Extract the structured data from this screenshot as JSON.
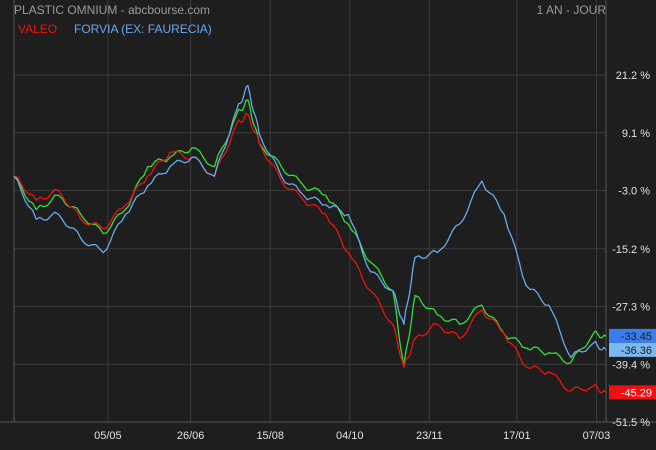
{
  "header": {
    "title": "PLASTIC OMNIUM - abcbourse.com",
    "period": "1 AN - JOUR"
  },
  "colors": {
    "background": "#1e1e1e",
    "grid": "#3a3a3a",
    "axis_text": "#e0e0e0",
    "muted_text": "#9a9a9a"
  },
  "chart_data": {
    "type": "line",
    "title": "PLASTIC OMNIUM",
    "y_unit": "%",
    "ylim": [
      -51.5,
      27.5
    ],
    "y_ticks": [
      21.2,
      9.1,
      -3.0,
      -15.2,
      -27.3,
      -39.4,
      -51.5
    ],
    "y_tick_labels": [
      "21.2 %",
      "9.1 %",
      "-3.0 %",
      "-15.2 %",
      "-27.3 %",
      "-39.4 %",
      "-51.5 %"
    ],
    "x_range": [
      "2023-03-07",
      "2024-03-13"
    ],
    "x_ticks": [
      "2023-05-05",
      "2023-06-26",
      "2023-08-15",
      "2023-10-04",
      "2023-11-23",
      "2024-01-17",
      "2024-03-07"
    ],
    "x_tick_labels": [
      "05/05",
      "26/06",
      "15/08",
      "04/10",
      "23/11",
      "17/01",
      "07/03"
    ],
    "grid": true,
    "legend": "top-left",
    "series": [
      {
        "name": "PLASTIC OMNIUM",
        "color": "#33dd33",
        "last_label": "-33.45",
        "label_bg": "#3b7ded",
        "points": [
          [
            "2023-03-07",
            0.0
          ],
          [
            "2023-03-21",
            -7.0
          ],
          [
            "2023-04-04",
            -4.0
          ],
          [
            "2023-04-18",
            -8.0
          ],
          [
            "2023-05-02",
            -12.0
          ],
          [
            "2023-05-16",
            -7.0
          ],
          [
            "2023-05-30",
            2.0
          ],
          [
            "2023-06-13",
            4.0
          ],
          [
            "2023-06-27",
            6.0
          ],
          [
            "2023-07-11",
            2.0
          ],
          [
            "2023-07-25",
            13.0
          ],
          [
            "2023-08-01",
            16.0
          ],
          [
            "2023-08-08",
            7.0
          ],
          [
            "2023-08-22",
            2.0
          ],
          [
            "2023-09-05",
            -2.0
          ],
          [
            "2023-09-19",
            -4.0
          ],
          [
            "2023-10-03",
            -10.0
          ],
          [
            "2023-10-17",
            -18.0
          ],
          [
            "2023-10-31",
            -24.0
          ],
          [
            "2023-11-07",
            -40.0
          ],
          [
            "2023-11-14",
            -25.0
          ],
          [
            "2023-11-28",
            -29.0
          ],
          [
            "2023-12-12",
            -31.0
          ],
          [
            "2023-12-26",
            -27.0
          ],
          [
            "2024-01-09",
            -33.0
          ],
          [
            "2024-01-23",
            -36.0
          ],
          [
            "2024-02-06",
            -37.0
          ],
          [
            "2024-02-20",
            -39.0
          ],
          [
            "2024-03-05",
            -33.0
          ],
          [
            "2024-03-13",
            -33.45
          ]
        ]
      },
      {
        "name": "VALEO",
        "color": "#ee1111",
        "last_label": "-45.29",
        "label_bg": "#ee1111",
        "points": [
          [
            "2023-03-07",
            0.0
          ],
          [
            "2023-03-21",
            -5.0
          ],
          [
            "2023-04-04",
            -3.0
          ],
          [
            "2023-04-18",
            -9.0
          ],
          [
            "2023-05-02",
            -11.0
          ],
          [
            "2023-05-16",
            -6.0
          ],
          [
            "2023-05-30",
            0.0
          ],
          [
            "2023-06-13",
            5.0
          ],
          [
            "2023-06-27",
            4.0
          ],
          [
            "2023-07-11",
            0.0
          ],
          [
            "2023-07-25",
            11.0
          ],
          [
            "2023-08-01",
            13.0
          ],
          [
            "2023-08-08",
            7.0
          ],
          [
            "2023-08-22",
            -1.0
          ],
          [
            "2023-09-05",
            -5.0
          ],
          [
            "2023-09-19",
            -8.0
          ],
          [
            "2023-10-03",
            -16.0
          ],
          [
            "2023-10-17",
            -24.0
          ],
          [
            "2023-10-31",
            -31.0
          ],
          [
            "2023-11-07",
            -40.0
          ],
          [
            "2023-11-14",
            -34.0
          ],
          [
            "2023-11-28",
            -31.0
          ],
          [
            "2023-12-12",
            -34.0
          ],
          [
            "2023-12-26",
            -28.0
          ],
          [
            "2024-01-09",
            -33.0
          ],
          [
            "2024-01-23",
            -40.0
          ],
          [
            "2024-02-06",
            -41.0
          ],
          [
            "2024-02-20",
            -45.0
          ],
          [
            "2024-03-05",
            -44.0
          ],
          [
            "2024-03-13",
            -45.29
          ]
        ]
      },
      {
        "name": "FORVIA (EX: FAURECIA)",
        "color": "#66aaee",
        "last_label": "-36.36",
        "label_bg": "#7db8f2",
        "points": [
          [
            "2023-03-07",
            0.0
          ],
          [
            "2023-03-21",
            -9.0
          ],
          [
            "2023-04-04",
            -8.0
          ],
          [
            "2023-04-18",
            -13.0
          ],
          [
            "2023-05-02",
            -16.0
          ],
          [
            "2023-05-16",
            -8.0
          ],
          [
            "2023-05-30",
            -2.0
          ],
          [
            "2023-06-13",
            2.0
          ],
          [
            "2023-06-27",
            4.0
          ],
          [
            "2023-07-11",
            0.0
          ],
          [
            "2023-07-25",
            14.0
          ],
          [
            "2023-08-01",
            19.0
          ],
          [
            "2023-08-08",
            9.0
          ],
          [
            "2023-08-22",
            0.0
          ],
          [
            "2023-09-05",
            -4.0
          ],
          [
            "2023-09-19",
            -6.0
          ],
          [
            "2023-10-03",
            -8.0
          ],
          [
            "2023-10-17",
            -20.0
          ],
          [
            "2023-10-31",
            -24.0
          ],
          [
            "2023-11-07",
            -31.0
          ],
          [
            "2023-11-14",
            -17.0
          ],
          [
            "2023-11-28",
            -16.0
          ],
          [
            "2023-12-12",
            -10.0
          ],
          [
            "2023-12-26",
            -1.0
          ],
          [
            "2024-01-09",
            -8.0
          ],
          [
            "2024-01-23",
            -23.0
          ],
          [
            "2024-02-06",
            -27.0
          ],
          [
            "2024-02-20",
            -38.0
          ],
          [
            "2024-03-05",
            -35.0
          ],
          [
            "2024-03-13",
            -36.36
          ]
        ]
      }
    ]
  }
}
